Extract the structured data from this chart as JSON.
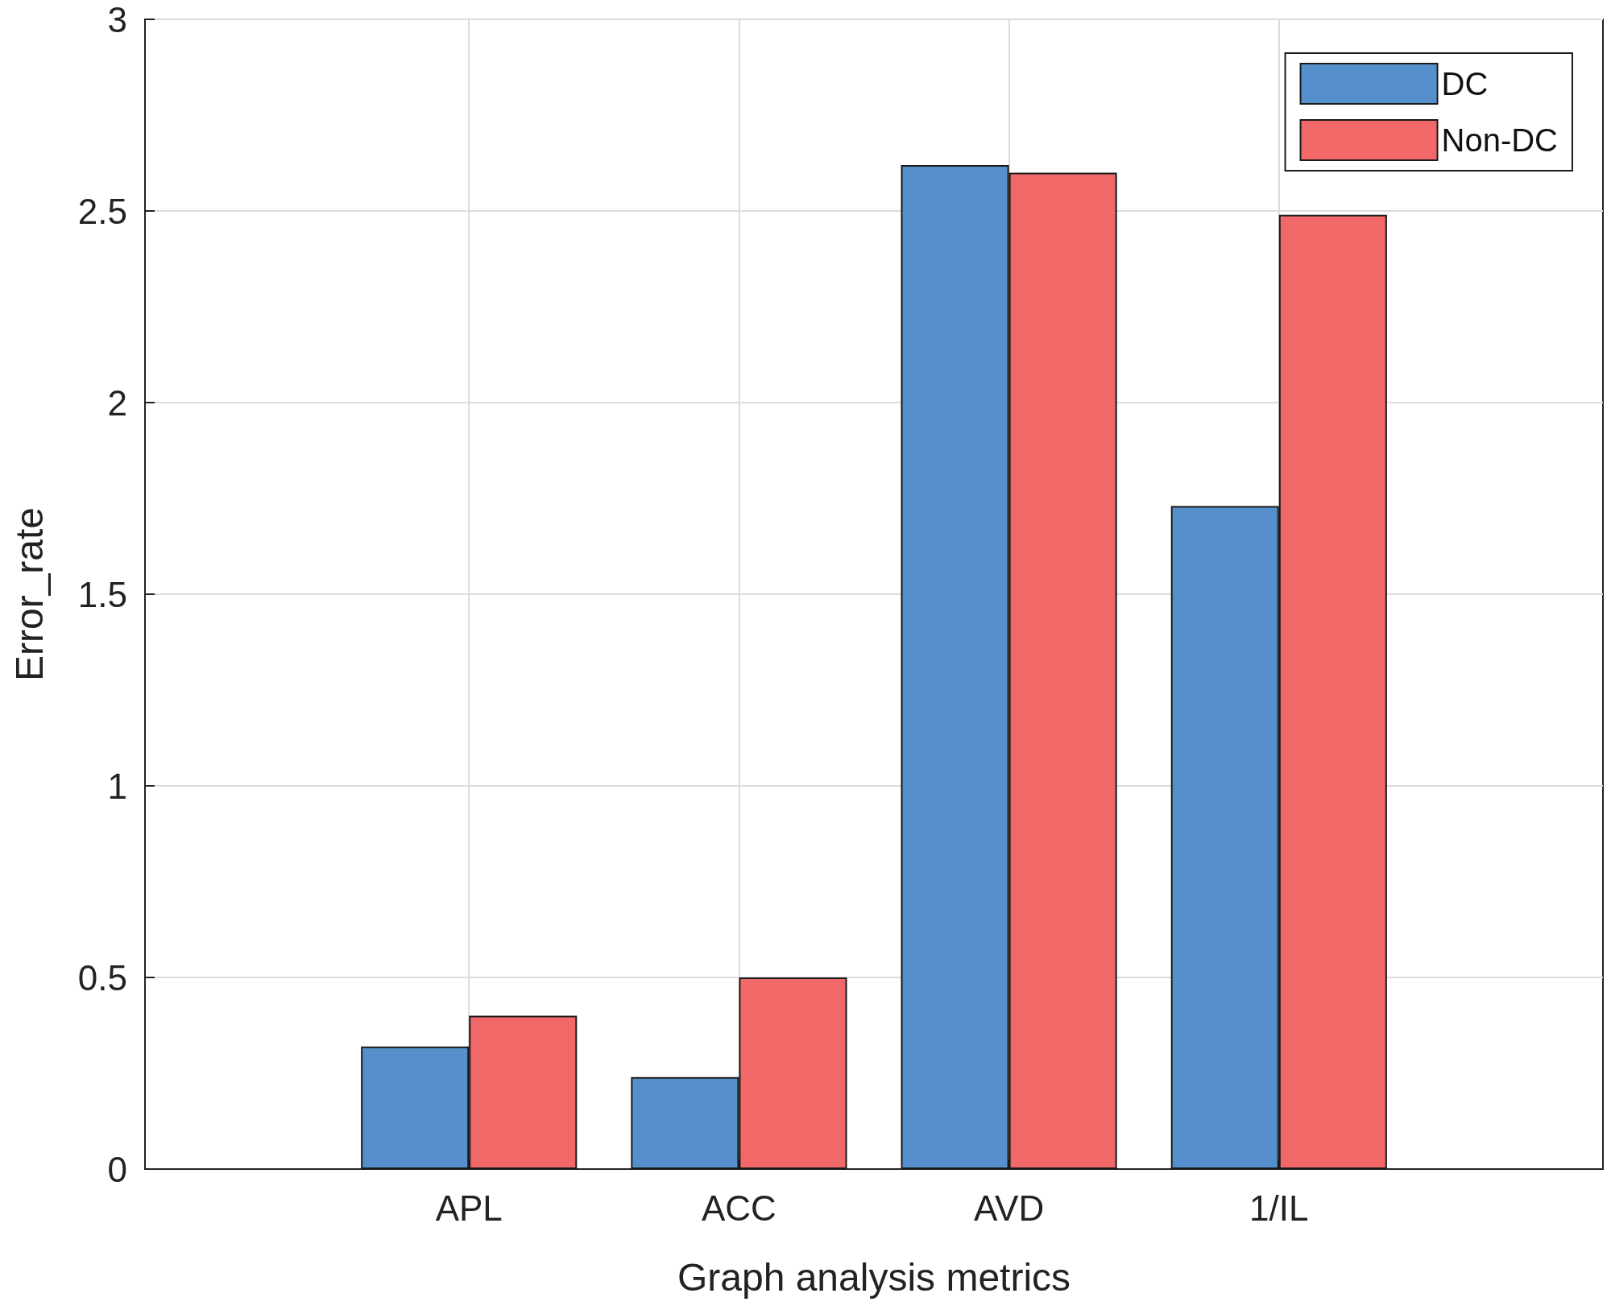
{
  "chart_data": {
    "type": "bar",
    "xlabel": "Graph analysis metrics",
    "ylabel": "Error_rate",
    "categories": [
      "APL",
      "ACC",
      "AVD",
      "1/IL"
    ],
    "series": [
      {
        "name": "DC",
        "color": "#5590cc",
        "values": [
          0.32,
          0.24,
          2.62,
          1.73
        ]
      },
      {
        "name": "Non-DC",
        "color": "#f06868",
        "values": [
          0.4,
          0.5,
          2.6,
          2.49
        ]
      }
    ],
    "ylim": [
      0,
      3
    ],
    "yticks": [
      0,
      0.5,
      1,
      1.5,
      2,
      2.5,
      3
    ],
    "grid": true,
    "legend": "top right"
  }
}
